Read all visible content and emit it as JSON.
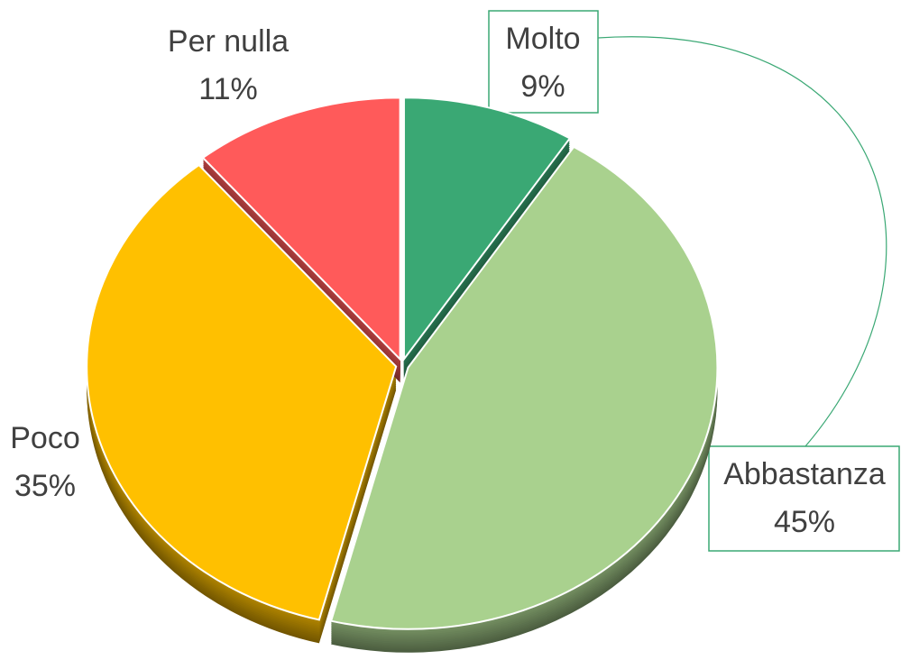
{
  "chart_data": {
    "type": "pie",
    "categories": [
      "Molto",
      "Abbastanza",
      "Poco",
      "Per nulla"
    ],
    "values": [
      9,
      45,
      35,
      11
    ],
    "value_labels": [
      "9%",
      "45%",
      "35%",
      "11%"
    ],
    "colors": [
      "#3aa874",
      "#a9d18e",
      "#ffc000",
      "#ff5a5a"
    ]
  }
}
